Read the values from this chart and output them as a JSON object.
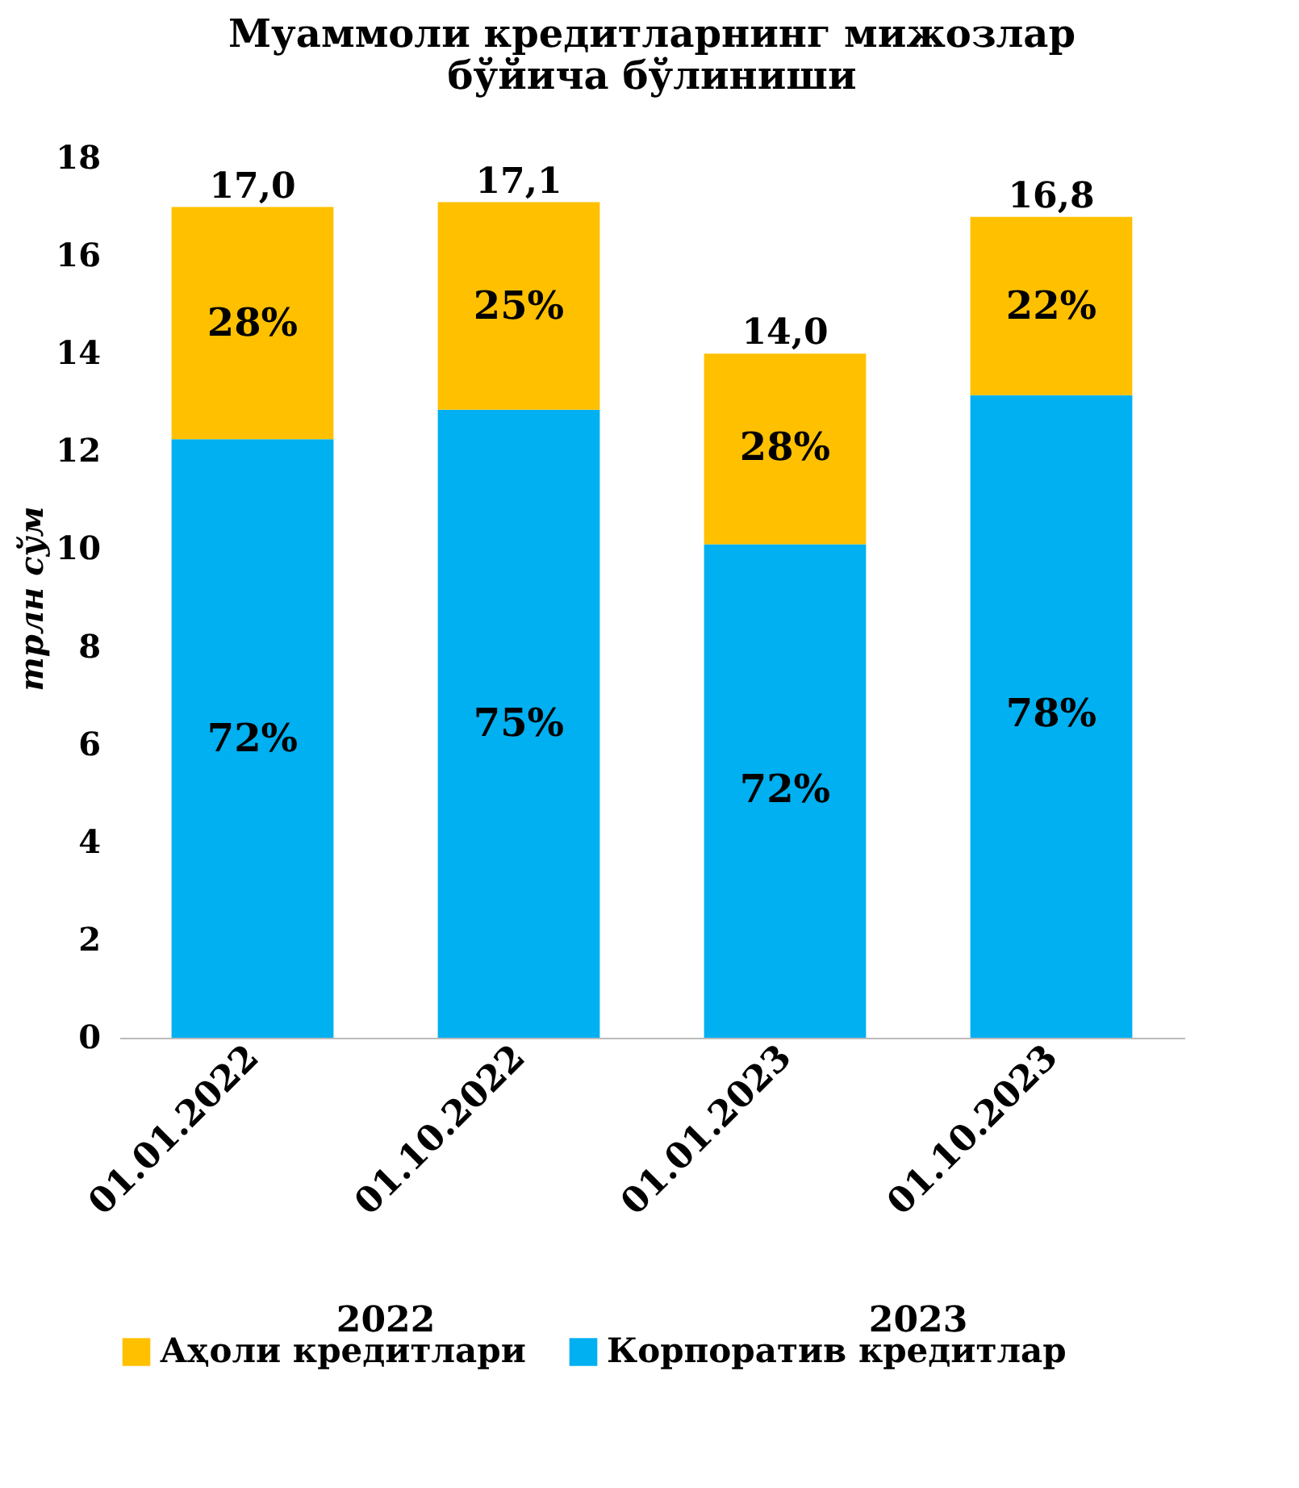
{
  "chart_data": {
    "type": "bar",
    "title": "Муаммоли кредитларнинг  мижозлар бўйича бўлиниши",
    "ylabel": "трлн сўм",
    "categories": [
      "01.01.2022",
      "01.10.2022",
      "01.01.2023",
      "01.10.2023"
    ],
    "series": [
      {
        "name": "Корпоратив кредитлар",
        "color": "#00b0f0",
        "values": [
          12.25,
          12.85,
          10.1,
          13.15
        ]
      },
      {
        "name": "Аҳоли кредитлари",
        "color": "#ffc000",
        "values": [
          4.75,
          4.25,
          3.9,
          3.65
        ]
      }
    ],
    "stacked": true,
    "totals": [
      "17,0",
      "17,1",
      "14,0",
      "16,8"
    ],
    "ylim": [
      0,
      18
    ],
    "yticks": [
      0,
      2,
      4,
      6,
      8,
      10,
      12,
      14,
      16,
      18
    ],
    "annotations": [
      "2022",
      "2023",
      {
        "text": "72%",
        "x": "01.01.2022",
        "y": 6.1
      },
      {
        "text": "75%",
        "x": "01.10.2022",
        "y": 6.4
      },
      {
        "text": "72%",
        "x": "01.01.2023",
        "y": 5.05
      },
      {
        "text": "78%",
        "x": "01.10.2023",
        "y": 6.6
      },
      {
        "text": "28%",
        "x": "01.01.2022",
        "y": 14.6
      },
      {
        "text": "25%",
        "x": "01.10.2022",
        "y": 14.95
      },
      {
        "text": "28%",
        "x": "01.01.2023",
        "y": 12.05
      },
      {
        "text": "22%",
        "x": "01.10.2023",
        "y": 14.95
      }
    ],
    "grid": false,
    "legend": "bottom"
  }
}
